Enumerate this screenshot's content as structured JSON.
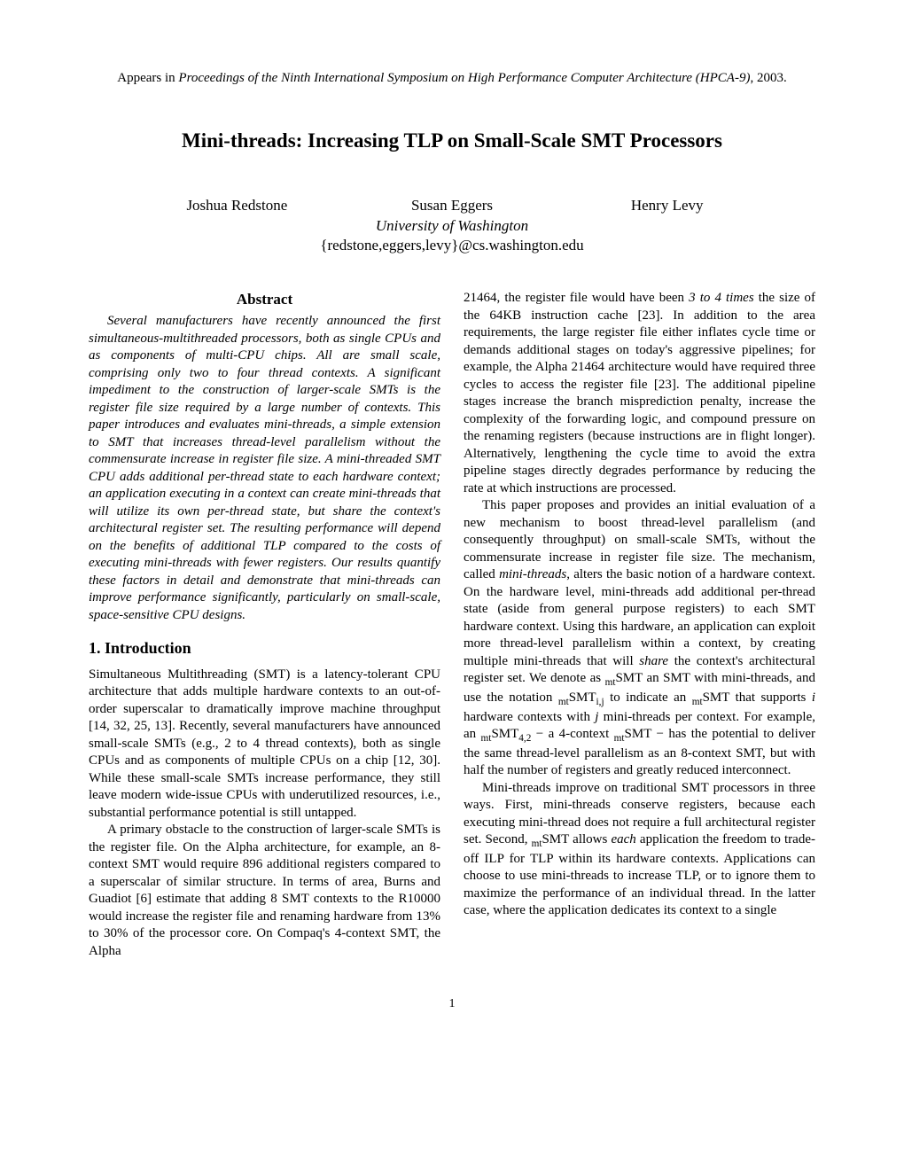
{
  "venue": {
    "prefix": "Appears in ",
    "italic": "Proceedings of the Ninth International Symposium on High Performance Computer Architecture (HPCA-9)",
    "suffix": ", 2003."
  },
  "title": "Mini-threads: Increasing TLP on Small-Scale SMT Processors",
  "authors": {
    "a1": "Joshua Redstone",
    "a2": "Susan Eggers",
    "a3": "Henry Levy"
  },
  "affiliation": "University of Washington",
  "email": "{redstone,eggers,levy}@cs.washington.edu",
  "abstract": {
    "heading": "Abstract",
    "text": "Several manufacturers have recently announced the first simultaneous-multithreaded processors, both as single CPUs and as components of multi-CPU chips. All are small scale, comprising only two to four thread contexts. A significant impediment to the construction of larger-scale SMTs is the register file size required by a large number of contexts. This paper introduces and evaluates mini-threads, a simple extension to SMT that increases thread-level parallelism without the commensurate increase in register file size. A mini-threaded SMT CPU adds additional per-thread state to each hardware context; an application executing in a context can create mini-threads that will utilize its own per-thread state, but share the context's architectural register set. The resulting performance will depend on the benefits of additional TLP compared to the costs of executing mini-threads with fewer registers. Our results quantify these factors in detail and demonstrate that mini-threads can improve performance significantly, particularly on small-scale, space-sensitive CPU designs."
  },
  "section1": {
    "heading": "1.  Introduction",
    "p1": "Simultaneous Multithreading (SMT) is a latency-tolerant CPU architecture that adds multiple hardware contexts to an out-of-order superscalar to dramatically improve machine throughput [14, 32, 25, 13]. Recently, several manufacturers have announced small-scale SMTs (e.g., 2 to 4 thread contexts), both as single CPUs and as components of multiple CPUs on a chip [12, 30]. While these small-scale SMTs increase performance, they still leave modern wide-issue CPUs with underutilized resources, i.e., substantial performance potential is still untapped.",
    "p2": "A primary obstacle to the construction of larger-scale SMTs is the register file. On the Alpha architecture, for example, an 8-context SMT would require 896 additional registers compared to a superscalar of similar structure. In terms of area, Burns and Guadiot [6] estimate that adding 8 SMT contexts to the R10000 would increase the register file and renaming hardware from 13% to 30% of the processor core. On Compaq's 4-context SMT, the Alpha"
  },
  "right": {
    "r1a": "21464, the register file would have been ",
    "r1_it": "3 to 4 times",
    "r1b": " the size of the 64KB instruction cache [23]. In addition to the area requirements, the large register file either inflates cycle time or demands additional stages on today's aggressive pipelines; for example, the Alpha 21464 architecture would have required three cycles to access the register file [23]. The additional pipeline stages increase the branch misprediction penalty, increase the complexity of the forwarding logic, and compound pressure on the renaming registers (because instructions are in flight longer). Alternatively, lengthening the cycle time to avoid the extra pipeline stages directly degrades performance by reducing the rate at which instructions are processed.",
    "r2a": "This paper proposes and provides an initial evaluation of a new mechanism to boost thread-level parallelism (and consequently throughput) on small-scale SMTs, without the commensurate increase in register file size. The mechanism, called ",
    "r2_it1": "mini-threads",
    "r2b": ", alters the basic notion of a hardware context. On the hardware level, mini-threads add additional per-thread state (aside from general purpose registers) to each SMT hardware context. Using this hardware, an application can exploit more thread-level parallelism within a context, by creating multiple mini-threads that will ",
    "r2_it2": "share",
    "r2c": " the context's architectural register set. We denote as ",
    "r2_sub1": "mt",
    "r2d": "SMT an SMT with mini-threads, and use the notation ",
    "r2_sub2": "mt",
    "r2e": "SMT",
    "r2_sub3": "i,j",
    "r2f": " to indicate an ",
    "r2_sub4": "mt",
    "r2g": "SMT that supports ",
    "r2_it3": "i",
    "r2h": " hardware contexts with ",
    "r2_it4": "j",
    "r2i": " mini-threads per context. For example, an ",
    "r2_sub5": "mt",
    "r2j": "SMT",
    "r2_sub6": "4,2",
    "r2k": " − a 4-context ",
    "r2_sub7": "mt",
    "r2l": "SMT − has the potential to deliver the same thread-level parallelism as an 8-context SMT, but with half the number of registers and greatly reduced interconnect.",
    "r3a": "Mini-threads improve on traditional SMT processors in three ways. First, mini-threads conserve registers, because each executing mini-thread does not require a full architectural register set. Second, ",
    "r3_sub1": "mt",
    "r3b": "SMT allows ",
    "r3_it1": "each",
    "r3c": " application the freedom to trade-off ILP for TLP within its hardware contexts. Applications can choose to use mini-threads to increase TLP, or to ignore them to maximize the performance of an individual thread. In the latter case, where the application dedicates its context to a single"
  },
  "pagenum": "1"
}
